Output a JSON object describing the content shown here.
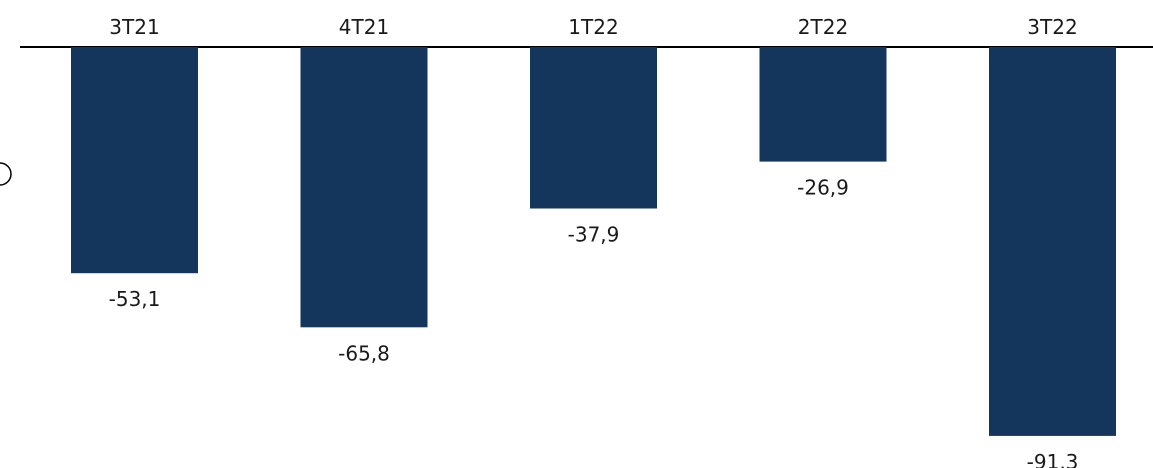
{
  "chart_data": {
    "type": "bar",
    "categories": [
      "3T21",
      "4T21",
      "1T22",
      "2T22",
      "3T22"
    ],
    "values": [
      -53.1,
      -65.8,
      -37.9,
      -26.9,
      -91.3
    ],
    "value_labels": [
      "-53,1",
      "-65,8",
      "-37,9",
      "-26,9",
      "-91,3"
    ],
    "title": "",
    "xlabel": "",
    "ylabel": "",
    "category_axis_position": "top",
    "grid": false,
    "legend": "none",
    "bar_color": "#14355c"
  }
}
